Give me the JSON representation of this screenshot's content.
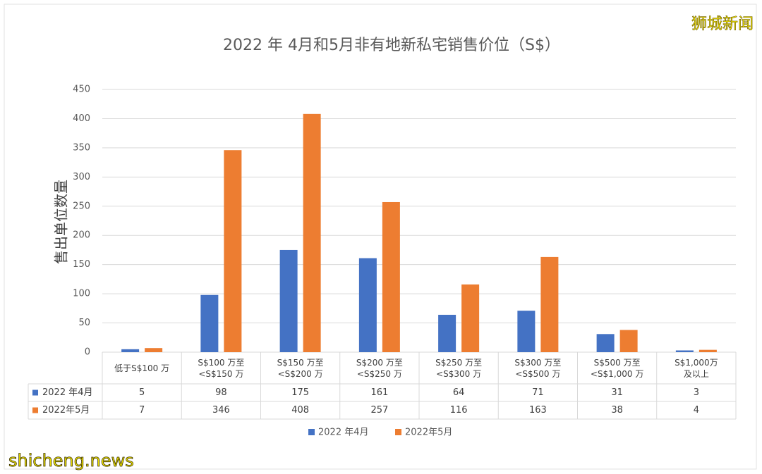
{
  "chart_data": {
    "type": "bar",
    "title": "2022 年 4月和5月非有地新私宅销售价位（S$）",
    "ylabel": "售出单位数量",
    "categories": [
      "低于S$100 万",
      "S$100 万至\n<S$150 万",
      "S$150 万至\n<S$200 万",
      "S$200 万至\n<S$250 万",
      "S$250 万至\n<S$300 万",
      "S$300 万至\n<S$500 万",
      "S$500 万至\n<S$1,000 万",
      "S$1,000万\n及以上"
    ],
    "series": [
      {
        "name": "2022 年4月",
        "color": "#4472c4",
        "values": [
          5,
          98,
          175,
          161,
          64,
          71,
          31,
          3
        ]
      },
      {
        "name": "2022年5月",
        "color": "#ed7d31",
        "values": [
          7,
          346,
          408,
          257,
          116,
          163,
          38,
          4
        ]
      }
    ],
    "ylim": [
      0,
      450
    ],
    "yticks": [
      0,
      50,
      100,
      150,
      200,
      250,
      300,
      350,
      400,
      450
    ],
    "grid": true
  },
  "watermark_top": "狮城新闻",
  "watermark_bottom": "shicheng.news"
}
